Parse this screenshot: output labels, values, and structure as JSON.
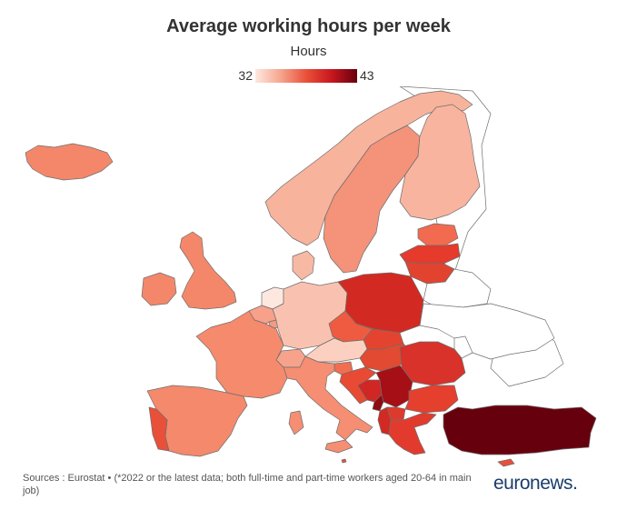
{
  "title": "Average working hours per week",
  "subtitle": "Hours",
  "legend": {
    "min": "32",
    "max": "43",
    "gradient": [
      "#fde8e0",
      "#f5a58e",
      "#e9503a",
      "#c7171e",
      "#67000d"
    ]
  },
  "source": "Sources : Eurostat • (*2022 or the latest data; both full-time and part-time workers aged 20-64 in main job)",
  "logo": {
    "brand": "euronews",
    "dot": "."
  },
  "colors": {
    "no_data": "#ffffff",
    "border": "#6e6e6e"
  },
  "countries": [
    {
      "id": "iceland",
      "color": "#f4876a"
    },
    {
      "id": "norway",
      "color": "#f7b39c"
    },
    {
      "id": "sweden",
      "color": "#f4927a"
    },
    {
      "id": "finland",
      "color": "#f8b49f"
    },
    {
      "id": "estonia",
      "color": "#f26a4f"
    },
    {
      "id": "latvia",
      "color": "#e53a2c"
    },
    {
      "id": "lithuania",
      "color": "#e2432f"
    },
    {
      "id": "denmark",
      "color": "#f7b9a4"
    },
    {
      "id": "united-kingdom",
      "color": "#f4876a"
    },
    {
      "id": "ireland",
      "color": "#f4876a"
    },
    {
      "id": "netherlands",
      "color": "#fde8e0"
    },
    {
      "id": "belgium",
      "color": "#f7a08a"
    },
    {
      "id": "luxembourg",
      "color": "#f59983"
    },
    {
      "id": "germany",
      "color": "#f9c2b0"
    },
    {
      "id": "poland",
      "color": "#d22a23"
    },
    {
      "id": "czechia",
      "color": "#ee5b40"
    },
    {
      "id": "slovakia",
      "color": "#e4442f"
    },
    {
      "id": "austria",
      "color": "#fbd0c1"
    },
    {
      "id": "switzerland",
      "color": "#f7a38c"
    },
    {
      "id": "france",
      "color": "#f58a6d"
    },
    {
      "id": "hungary",
      "color": "#e24a31"
    },
    {
      "id": "slovenia",
      "color": "#f26e50"
    },
    {
      "id": "croatia",
      "color": "#e84a33"
    },
    {
      "id": "bosnia",
      "color": "#d02624"
    },
    {
      "id": "serbia",
      "color": "#a50f15"
    },
    {
      "id": "montenegro",
      "color": "#8e0b12"
    },
    {
      "id": "albania",
      "color": "#d22a23"
    },
    {
      "id": "north-macedonia",
      "color": "#de3a2b"
    },
    {
      "id": "romania",
      "color": "#d8322a"
    },
    {
      "id": "bulgaria",
      "color": "#e53f2e"
    },
    {
      "id": "greece",
      "color": "#e23b2d"
    },
    {
      "id": "turkey",
      "color": "#67000d"
    },
    {
      "id": "italy",
      "color": "#f58e72"
    },
    {
      "id": "spain",
      "color": "#f4896c"
    },
    {
      "id": "portugal",
      "color": "#e9503a"
    },
    {
      "id": "cyprus",
      "color": "#e9503a"
    },
    {
      "id": "malta",
      "color": "#e9503a"
    },
    {
      "id": "belarus",
      "color": "#ffffff"
    },
    {
      "id": "ukraine",
      "color": "#ffffff"
    },
    {
      "id": "moldova",
      "color": "#ffffff"
    },
    {
      "id": "russia",
      "color": "#ffffff"
    }
  ]
}
